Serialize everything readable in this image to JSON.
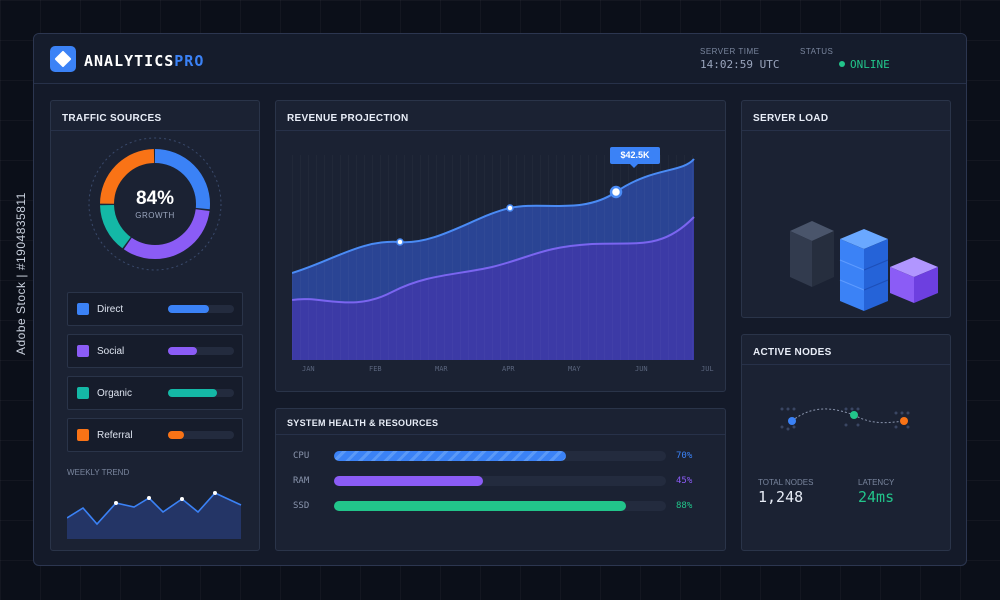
{
  "header": {
    "app_name": "ANALYTICS",
    "app_name_accent": "PRO",
    "server_time_label": "SERVER TIME",
    "server_time": "14:02:59 UTC",
    "status_label": "STATUS",
    "status": "ONLINE"
  },
  "traffic": {
    "title": "TRAFFIC SOURCES",
    "donut_value": "84%",
    "donut_caption": "GROWTH",
    "sources": [
      {
        "label": "Direct",
        "color": "#3b82f6",
        "level": 0.62
      },
      {
        "label": "Social",
        "color": "#8b5cf6",
        "level": 0.44
      },
      {
        "label": "Organic",
        "color": "#14b8a6",
        "level": 0.74
      },
      {
        "label": "Referral",
        "color": "#f97316",
        "level": 0.24
      }
    ],
    "weekly_trend_label": "WEEKLY TREND"
  },
  "revenue": {
    "title": "REVENUE PROJECTION",
    "tooltip": "$42.5K",
    "months": [
      "JAN",
      "FEB",
      "MAR",
      "APR",
      "MAY",
      "JUN",
      "JUL"
    ]
  },
  "system": {
    "title": "SYSTEM HEALTH & RESOURCES",
    "resources": [
      {
        "label": "CPU",
        "pct": "70%",
        "value": 0.7,
        "color": "#3b82f6"
      },
      {
        "label": "RAM",
        "pct": "45%",
        "value": 0.45,
        "color": "#8b5cf6"
      },
      {
        "label": "SSD",
        "pct": "88%",
        "value": 0.88,
        "color": "#22c58b"
      }
    ]
  },
  "server_load": {
    "title": "SERVER LOAD"
  },
  "nodes": {
    "title": "ACTIVE NODES",
    "total_label": "TOTAL NODES",
    "total_value": "1,248",
    "latency_label": "LATENCY",
    "latency_value": "24ms"
  },
  "watermark": "Adobe Stock | #1904835811",
  "colors": {
    "accent": "#3b82f6",
    "purple": "#8b5cf6",
    "teal": "#14b8a6",
    "orange": "#f97316",
    "green": "#22c58b"
  },
  "icons": [
    "logo-diamond-icon",
    "status-dot-icon"
  ]
}
